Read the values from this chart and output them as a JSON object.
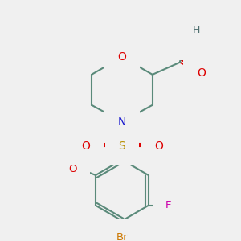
{
  "background_color": "#f0f0f0",
  "bond_color": "#5a8a7a",
  "bond_width": 1.5,
  "colors": {
    "O": "#dd0000",
    "N": "#1010cc",
    "S": "#b89000",
    "F": "#cc00aa",
    "Br": "#cc7700",
    "H": "#507070",
    "C": "#5a8a7a"
  }
}
